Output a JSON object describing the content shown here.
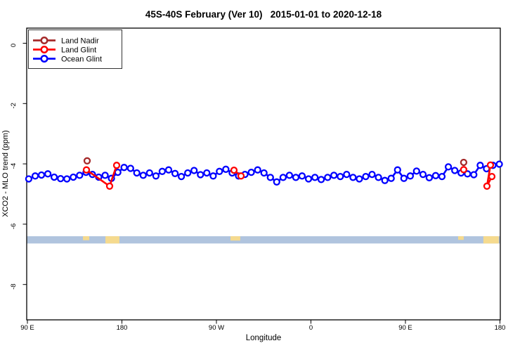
{
  "title": "45S-40S February (Ver 10)   2015-01-01 to 2020-12-18",
  "legend": {
    "position": "topleft",
    "items": [
      {
        "label": "Land Nadir",
        "color": "#A52A2A"
      },
      {
        "label": "Land Glint",
        "color": "#FF0000"
      },
      {
        "label": "Ocean Glint",
        "color": "#0000FF"
      }
    ]
  },
  "chart_data": {
    "type": "line",
    "title": "45S-40S February (Ver 10)   2015-01-01 to 2020-12-18",
    "xlabel": "Longitude",
    "ylabel": "XCO2 - MLO trend (ppm)",
    "xlim": [
      90,
      540
    ],
    "ylim": [
      -9.2,
      0.5
    ],
    "grid": false,
    "x_ticks": [
      {
        "pos": 90,
        "label": "90 E"
      },
      {
        "pos": 180,
        "label": "180"
      },
      {
        "pos": 270,
        "label": "90 W"
      },
      {
        "pos": 360,
        "label": "0"
      },
      {
        "pos": 450,
        "label": "90 E"
      },
      {
        "pos": 540,
        "label": "180"
      }
    ],
    "y_ticks": [
      {
        "pos": 0,
        "label": "0"
      },
      {
        "pos": -2,
        "label": "-2"
      },
      {
        "pos": -4,
        "label": "-4"
      },
      {
        "pos": -6,
        "label": "-6"
      },
      {
        "pos": -8,
        "label": "-8"
      }
    ],
    "band": {
      "y_top": -6.4,
      "y_bottom": -6.64,
      "color": "#B0C4DE",
      "patch_color": "#F5DA8E",
      "patches": [
        {
          "x1": 142.9,
          "x2": 148.9,
          "f_top": 0.0,
          "f_bottom": 0.55
        },
        {
          "x1": 164.3,
          "x2": 177.6,
          "f_top": 0.0,
          "f_bottom": 1.0
        },
        {
          "x1": 283.4,
          "x2": 292.7,
          "f_top": 0.0,
          "f_bottom": 0.6
        },
        {
          "x1": 500.2,
          "x2": 505.5,
          "f_top": 0.0,
          "f_bottom": 0.5
        },
        {
          "x1": 524.2,
          "x2": 538.9,
          "f_top": 0.0,
          "f_bottom": 1.0
        }
      ]
    },
    "series": [
      {
        "name": "Land Nadir",
        "color": "#A52A2A",
        "marker": "open-circle",
        "segments": [
          [
            [
              146.9,
              -3.9
            ]
          ],
          [
            [
              505.5,
              -3.95
            ]
          ]
        ]
      },
      {
        "name": "Land Glint",
        "color": "#FF0000",
        "marker": "open-circle",
        "segments": [
          [
            [
              146.2,
              -4.2
            ],
            [
              168.3,
              -4.74
            ],
            [
              175.0,
              -4.05
            ]
          ],
          [
            [
              286.7,
              -4.21
            ],
            [
              293.4,
              -4.4
            ]
          ],
          [
            [
              505.5,
              -4.19
            ]
          ],
          [
            [
              531.0,
              -4.04
            ],
            [
              527.6,
              -4.74
            ],
            [
              532.3,
              -4.42
            ]
          ]
        ]
      },
      {
        "name": "Ocean Glint",
        "color": "#0000FF",
        "marker": "open-circle",
        "segments": [
          [
            [
              91.3,
              -4.5
            ],
            [
              97.4,
              -4.4
            ],
            [
              103.4,
              -4.37
            ],
            [
              109.5,
              -4.33
            ],
            [
              115.5,
              -4.44
            ],
            [
              121.6,
              -4.49
            ],
            [
              127.6,
              -4.5
            ],
            [
              133.7,
              -4.44
            ],
            [
              139.7,
              -4.38
            ],
            [
              145.8,
              -4.28
            ],
            [
              151.9,
              -4.35
            ],
            [
              157.9,
              -4.44
            ],
            [
              164.0,
              -4.38
            ],
            [
              170.0,
              -4.48
            ],
            [
              176.1,
              -4.28
            ],
            [
              182.1,
              -4.12
            ],
            [
              188.2,
              -4.15
            ],
            [
              194.2,
              -4.3
            ],
            [
              200.3,
              -4.38
            ],
            [
              206.3,
              -4.3
            ],
            [
              212.4,
              -4.4
            ],
            [
              218.4,
              -4.25
            ],
            [
              224.5,
              -4.2
            ],
            [
              230.6,
              -4.32
            ],
            [
              236.6,
              -4.42
            ],
            [
              242.7,
              -4.3
            ],
            [
              248.7,
              -4.22
            ],
            [
              254.8,
              -4.36
            ],
            [
              260.8,
              -4.3
            ],
            [
              266.9,
              -4.4
            ],
            [
              272.9,
              -4.25
            ],
            [
              279.0,
              -4.18
            ],
            [
              285.0,
              -4.3
            ],
            [
              291.1,
              -4.4
            ],
            [
              297.2,
              -4.35
            ],
            [
              303.2,
              -4.28
            ],
            [
              309.3,
              -4.2
            ],
            [
              315.3,
              -4.3
            ],
            [
              321.4,
              -4.45
            ],
            [
              327.4,
              -4.6
            ],
            [
              333.5,
              -4.45
            ],
            [
              339.5,
              -4.38
            ],
            [
              345.6,
              -4.45
            ],
            [
              351.6,
              -4.4
            ],
            [
              357.7,
              -4.5
            ],
            [
              363.8,
              -4.45
            ],
            [
              369.8,
              -4.52
            ],
            [
              375.9,
              -4.45
            ],
            [
              381.9,
              -4.38
            ],
            [
              388.0,
              -4.42
            ],
            [
              394.0,
              -4.35
            ],
            [
              400.1,
              -4.45
            ],
            [
              406.1,
              -4.5
            ],
            [
              412.2,
              -4.42
            ],
            [
              418.2,
              -4.35
            ],
            [
              424.3,
              -4.45
            ],
            [
              430.4,
              -4.55
            ],
            [
              436.4,
              -4.48
            ],
            [
              442.5,
              -4.2
            ],
            [
              448.5,
              -4.48
            ],
            [
              454.6,
              -4.4
            ],
            [
              460.6,
              -4.24
            ],
            [
              466.7,
              -4.35
            ],
            [
              472.7,
              -4.46
            ],
            [
              478.8,
              -4.39
            ],
            [
              484.8,
              -4.42
            ],
            [
              490.9,
              -4.1
            ],
            [
              497.0,
              -4.22
            ],
            [
              503.0,
              -4.3
            ],
            [
              509.1,
              -4.33
            ],
            [
              515.1,
              -4.36
            ],
            [
              521.2,
              -4.05
            ],
            [
              527.2,
              -4.16
            ],
            [
              533.3,
              -4.05
            ],
            [
              539.4,
              -4.01
            ]
          ]
        ]
      }
    ]
  }
}
